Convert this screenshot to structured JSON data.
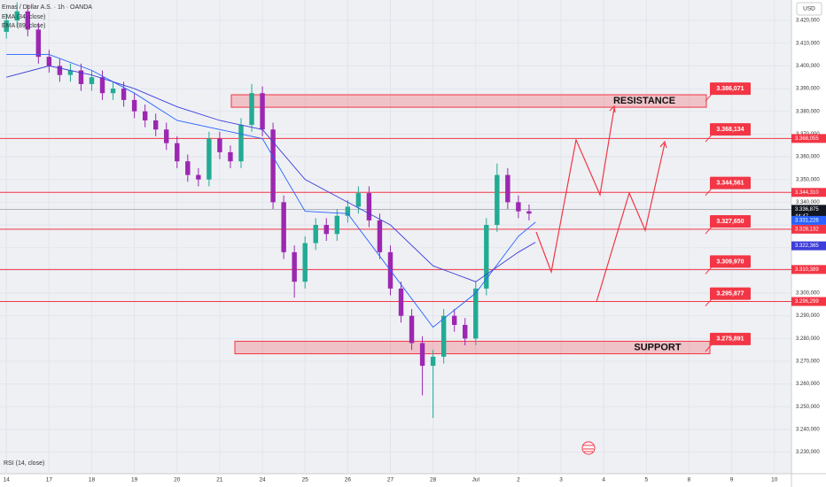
{
  "chart_data": {
    "type": "candlestick",
    "title": "Emas / Dollar A.S. · 1h · OANDA",
    "currency": "USD",
    "indicator_label": "RSI (14, close)",
    "up_color": "#22ab94",
    "down_color": "#9c27b0",
    "x": [
      0,
      0.25,
      0.5,
      0.75,
      1,
      1.25,
      1.5,
      1.75,
      2,
      2.25,
      2.5,
      2.75,
      3,
      3.25,
      3.5,
      3.75,
      4,
      4.25,
      4.5,
      4.75,
      5,
      5.25,
      5.5,
      5.75,
      6,
      6.25,
      6.5,
      6.75,
      7,
      7.25,
      7.5,
      7.75,
      8,
      8.25,
      8.5,
      8.75,
      9,
      9.25,
      9.5,
      9.75,
      10,
      10.25,
      10.5,
      10.75,
      11,
      11.25,
      11.5,
      11.75,
      12,
      12.25
    ],
    "open": [
      3.415,
      3.42,
      3.424,
      3.416,
      3.404,
      3.4,
      3.396,
      3.398,
      3.392,
      3.395,
      3.388,
      3.39,
      3.385,
      3.38,
      3.376,
      3.372,
      3.366,
      3.358,
      3.352,
      3.35,
      3.368,
      3.362,
      3.358,
      3.374,
      3.388,
      3.372,
      3.34,
      3.318,
      3.305,
      3.322,
      3.33,
      3.326,
      3.334,
      3.338,
      3.344,
      3.332,
      3.318,
      3.302,
      3.29,
      3.278,
      3.268,
      3.272,
      3.29,
      3.286,
      3.28,
      3.302,
      3.33,
      3.352,
      3.34,
      3.336
    ],
    "high": [
      3.423,
      3.428,
      3.427,
      3.419,
      3.407,
      3.403,
      3.401,
      3.401,
      3.398,
      3.398,
      3.393,
      3.393,
      3.388,
      3.383,
      3.379,
      3.375,
      3.369,
      3.361,
      3.355,
      3.371,
      3.371,
      3.365,
      3.377,
      3.392,
      3.391,
      3.375,
      3.343,
      3.321,
      3.325,
      3.333,
      3.333,
      3.337,
      3.341,
      3.347,
      3.347,
      3.335,
      3.321,
      3.305,
      3.293,
      3.281,
      3.275,
      3.293,
      3.293,
      3.289,
      3.305,
      3.333,
      3.357,
      3.355,
      3.343,
      3.339
    ],
    "low": [
      3.412,
      3.417,
      3.413,
      3.401,
      3.397,
      3.393,
      3.393,
      3.389,
      3.389,
      3.385,
      3.385,
      3.382,
      3.377,
      3.373,
      3.369,
      3.363,
      3.355,
      3.349,
      3.347,
      3.347,
      3.359,
      3.355,
      3.355,
      3.371,
      3.369,
      3.337,
      3.315,
      3.298,
      3.302,
      3.319,
      3.323,
      3.323,
      3.331,
      3.335,
      3.329,
      3.315,
      3.299,
      3.287,
      3.275,
      3.255,
      3.245,
      3.269,
      3.283,
      3.277,
      3.277,
      3.299,
      3.327,
      3.337,
      3.333,
      3.332
    ],
    "close": [
      3.42,
      3.424,
      3.416,
      3.404,
      3.4,
      3.396,
      3.398,
      3.392,
      3.395,
      3.388,
      3.39,
      3.385,
      3.38,
      3.376,
      3.372,
      3.366,
      3.358,
      3.352,
      3.35,
      3.368,
      3.362,
      3.358,
      3.374,
      3.388,
      3.372,
      3.34,
      3.318,
      3.305,
      3.322,
      3.33,
      3.326,
      3.334,
      3.338,
      3.344,
      3.332,
      3.318,
      3.302,
      3.29,
      3.278,
      3.268,
      3.272,
      3.29,
      3.286,
      3.28,
      3.302,
      3.33,
      3.352,
      3.34,
      3.336,
      3.335
    ],
    "series": [
      {
        "name": "EMA (34, close)",
        "color": "#2962ff",
        "x": [
          0,
          1,
          2,
          3,
          4,
          5,
          6,
          7,
          8,
          9,
          10,
          11,
          12,
          12.4
        ],
        "values": [
          3.405,
          3.405,
          3.398,
          3.388,
          3.376,
          3.372,
          3.368,
          3.336,
          3.335,
          3.31,
          3.285,
          3.3,
          3.325,
          3.331226
        ],
        "last_label": "3.331,226"
      },
      {
        "name": "EMA (89, close)",
        "color": "#3d3dd9",
        "x": [
          0,
          1,
          2,
          3,
          4,
          5,
          6,
          7,
          8,
          9,
          10,
          11,
          12,
          12.4
        ],
        "values": [
          3.395,
          3.4,
          3.396,
          3.39,
          3.382,
          3.376,
          3.372,
          3.35,
          3.34,
          3.33,
          3.312,
          3.305,
          3.318,
          3.322365
        ],
        "last_label": "3.322,365"
      }
    ],
    "levels": [
      {
        "value": 3.368055,
        "label": "3.368,055"
      },
      {
        "value": 3.34431,
        "label": "3.344,310"
      },
      {
        "value": 3.328132,
        "label": "3.328,132"
      },
      {
        "value": 3.310389,
        "label": "3.310,389"
      },
      {
        "value": 3.296299,
        "label": "3.296,299"
      }
    ],
    "last_price": {
      "value": 3.336875,
      "label": "3.336,875"
    },
    "countdown": "44:47",
    "callouts": [
      {
        "value": 3.386071,
        "label": "3.386,071"
      },
      {
        "value": 3.368134,
        "label": "3.368,134"
      },
      {
        "value": 3.344561,
        "label": "3.344,561"
      },
      {
        "value": 3.32765,
        "label": "3.327,650"
      },
      {
        "value": 3.30997,
        "label": "3.309,970"
      },
      {
        "value": 3.295877,
        "label": "3.295,877"
      },
      {
        "value": 3.275891,
        "label": "3.275,891"
      }
    ],
    "zones": [
      {
        "label": "RESISTANCE",
        "low": 3.3818,
        "high": 3.3873
      },
      {
        "label": "SUPPORT",
        "low": 3.2733,
        "high": 3.2788
      }
    ],
    "xlim": [
      -0.15,
      18.4
    ],
    "ylim": [
      3.2205,
      3.429
    ],
    "xticks": [
      {
        "value": 0,
        "label": "14"
      },
      {
        "value": 1,
        "label": "17"
      },
      {
        "value": 2,
        "label": "18"
      },
      {
        "value": 3,
        "label": "19"
      },
      {
        "value": 4,
        "label": "20"
      },
      {
        "value": 5,
        "label": "21"
      },
      {
        "value": 6,
        "label": "24"
      },
      {
        "value": 7,
        "label": "25"
      },
      {
        "value": 8,
        "label": "26"
      },
      {
        "value": 9,
        "label": "27"
      },
      {
        "value": 10,
        "label": "28"
      },
      {
        "value": 11,
        "label": "Jul"
      },
      {
        "value": 12,
        "label": "2"
      },
      {
        "value": 13,
        "label": "3"
      },
      {
        "value": 14,
        "label": "4"
      },
      {
        "value": 15,
        "label": "5"
      },
      {
        "value": 16,
        "label": "8"
      },
      {
        "value": 17,
        "label": "9"
      },
      {
        "value": 18,
        "label": "10"
      }
    ],
    "yticks": [
      {
        "value": 3.23,
        "label": "3.230,000"
      },
      {
        "value": 3.24,
        "label": "3.240,000"
      },
      {
        "value": 3.25,
        "label": "3.250,000"
      },
      {
        "value": 3.26,
        "label": "3.260,000"
      },
      {
        "value": 3.27,
        "label": "3.270,000"
      },
      {
        "value": 3.28,
        "label": "3.280,000"
      },
      {
        "value": 3.29,
        "label": "3.290,000"
      },
      {
        "value": 3.3,
        "label": "3.300,000"
      },
      {
        "value": 3.31,
        "label": "3.310,000"
      },
      {
        "value": 3.32,
        "label": "3.320,000"
      },
      {
        "value": 3.33,
        "label": "3.330,000"
      },
      {
        "value": 3.34,
        "label": "3.340,000"
      },
      {
        "value": 3.35,
        "label": "3.350,000"
      },
      {
        "value": 3.36,
        "label": "3.360,000"
      },
      {
        "value": 3.37,
        "label": "3.370,000"
      },
      {
        "value": 3.38,
        "label": "3.380,000"
      },
      {
        "value": 3.39,
        "label": "3.390,000"
      },
      {
        "value": 3.4,
        "label": "3.400,000"
      },
      {
        "value": 3.41,
        "label": "3.410,000"
      },
      {
        "value": 3.42,
        "label": "3.420,000"
      }
    ],
    "grid": true
  }
}
